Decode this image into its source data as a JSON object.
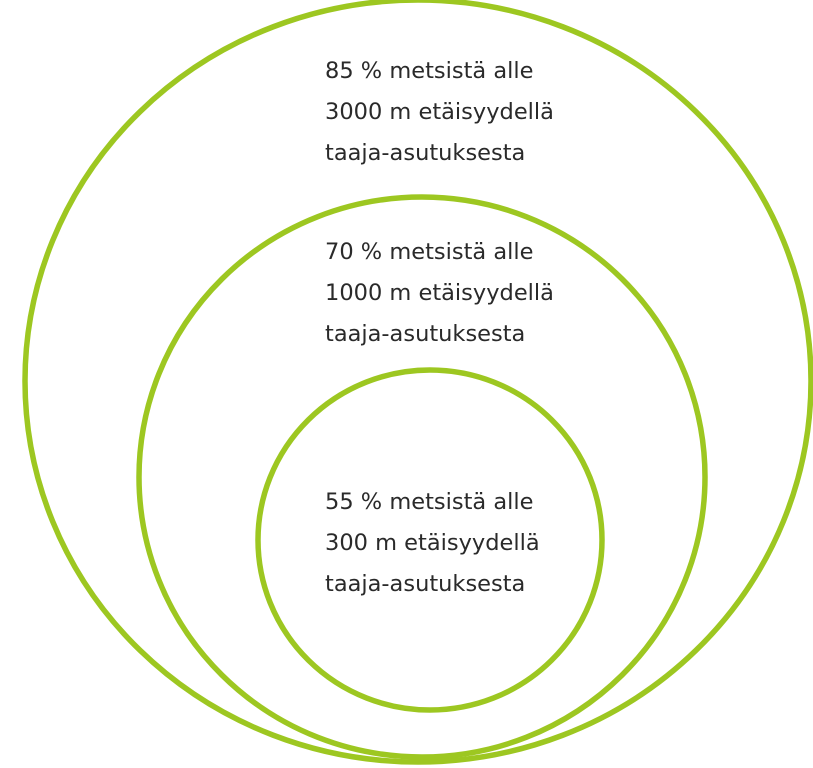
{
  "diagram": {
    "ring_color": "#9dc721",
    "text_color": "#2a2a2a",
    "rings": [
      {
        "lines": [
          "85 % metsistä alle",
          "3000 m etäisyydellä",
          "taaja-asutuksesta"
        ]
      },
      {
        "lines": [
          "70 % metsistä alle",
          "1000 m etäisyydellä",
          "taaja-asutuksesta"
        ]
      },
      {
        "lines": [
          "55 % metsistä alle",
          "300 m etäisyydellä",
          "taaja-asutuksesta"
        ]
      }
    ]
  }
}
